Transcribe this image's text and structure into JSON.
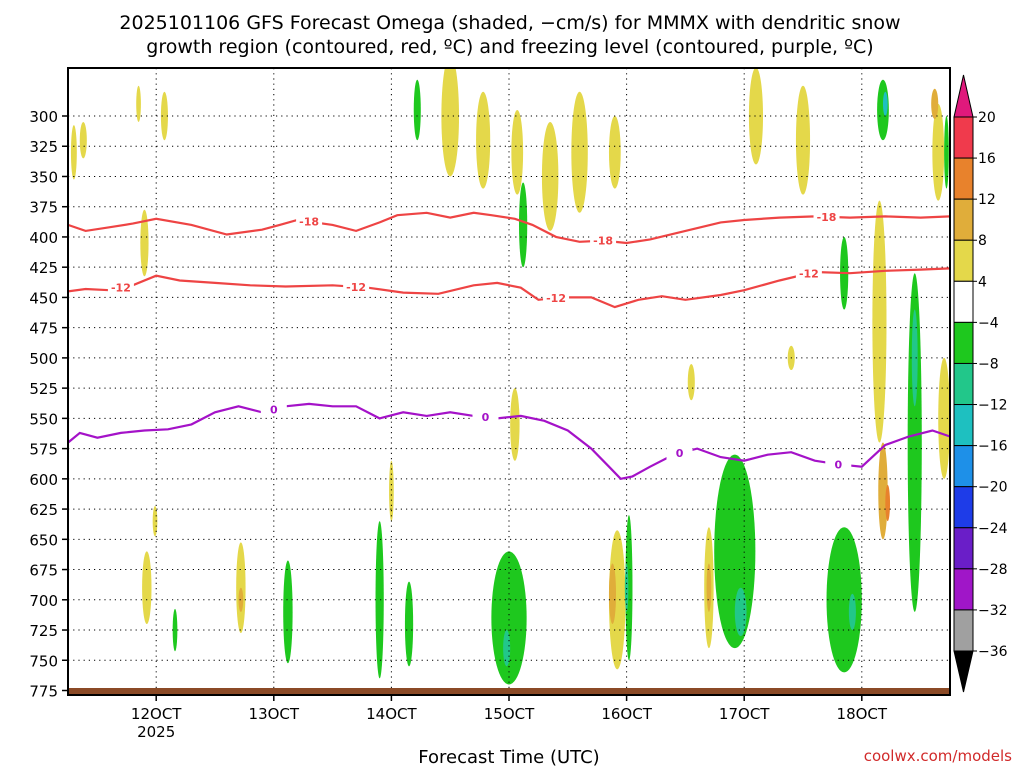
{
  "chart_data": {
    "type": "heatmap",
    "title_line1": "2025101106 GFS Forecast Omega (shaded, −cm/s) for MMMX with dendritic snow",
    "title_line2": "growth region (contoured, red, ºC) and freezing level (contoured, purple, ºC)",
    "xlabel": "Forecast Time (UTC)",
    "credit": "coolwx.com/models",
    "x_range_days": [
      11.25,
      18.75
    ],
    "x_ticks": [
      {
        "day": 12,
        "label": "12OCT",
        "sub": "2025"
      },
      {
        "day": 13,
        "label": "13OCT",
        "sub": ""
      },
      {
        "day": 14,
        "label": "14OCT",
        "sub": ""
      },
      {
        "day": 15,
        "label": "15OCT",
        "sub": ""
      },
      {
        "day": 16,
        "label": "16OCT",
        "sub": ""
      },
      {
        "day": 17,
        "label": "17OCT",
        "sub": ""
      },
      {
        "day": 18,
        "label": "18OCT",
        "sub": ""
      }
    ],
    "y_ticks": [
      "300",
      "325",
      "350",
      "375",
      "400",
      "425",
      "450",
      "475",
      "500",
      "525",
      "550",
      "575",
      "600",
      "625",
      "650",
      "675",
      "700",
      "725",
      "750",
      "775"
    ],
    "colorbar": {
      "labels": [
        "20",
        "16",
        "12",
        "8",
        "4",
        "−4",
        "−8",
        "−12",
        "−16",
        "−20",
        "−24",
        "−28",
        "−32",
        "−36"
      ],
      "colors": [
        "#f03a4c",
        "#e8822c",
        "#e0ad3a",
        "#e4d84a",
        "#ffffff",
        "#1ec81e",
        "#22c78a",
        "#1ec0c0",
        "#1e90e8",
        "#1e3ce8",
        "#6a1ec8",
        "#a016c8",
        "#a0a0a0"
      ],
      "top_arrow_color": "#e0197c",
      "bottom_arrow_color": "#000000"
    },
    "omega_patches": [
      {
        "day": 11.3,
        "p": 330,
        "w": 0.05,
        "h": 45,
        "color": "#e4d84a"
      },
      {
        "day": 11.38,
        "p": 320,
        "w": 0.06,
        "h": 30,
        "color": "#e4d84a"
      },
      {
        "day": 11.85,
        "p": 290,
        "w": 0.04,
        "h": 30,
        "color": "#e4d84a"
      },
      {
        "day": 12.07,
        "p": 300,
        "w": 0.06,
        "h": 40,
        "color": "#e4d84a"
      },
      {
        "day": 11.9,
        "p": 405,
        "w": 0.07,
        "h": 55,
        "color": "#e4d84a"
      },
      {
        "day": 11.92,
        "p": 690,
        "w": 0.08,
        "h": 60,
        "color": "#e4d84a"
      },
      {
        "day": 11.99,
        "p": 635,
        "w": 0.04,
        "h": 25,
        "color": "#e4d84a"
      },
      {
        "day": 12.16,
        "p": 725,
        "w": 0.04,
        "h": 35,
        "color": "#1ec81e"
      },
      {
        "day": 12.72,
        "p": 690,
        "w": 0.08,
        "h": 75,
        "color": "#e4d84a"
      },
      {
        "day": 12.72,
        "p": 700,
        "w": 0.04,
        "h": 20,
        "color": "#e0ad3a"
      },
      {
        "day": 13.12,
        "p": 710,
        "w": 0.08,
        "h": 85,
        "color": "#1ec81e"
      },
      {
        "day": 13.9,
        "p": 700,
        "w": 0.07,
        "h": 130,
        "color": "#1ec81e"
      },
      {
        "day": 14.15,
        "p": 720,
        "w": 0.07,
        "h": 70,
        "color": "#1ec81e"
      },
      {
        "day": 14.0,
        "p": 610,
        "w": 0.04,
        "h": 50,
        "color": "#e4d84a"
      },
      {
        "day": 14.22,
        "p": 295,
        "w": 0.06,
        "h": 50,
        "color": "#1ec81e"
      },
      {
        "day": 14.5,
        "p": 300,
        "w": 0.15,
        "h": 100,
        "color": "#e4d84a"
      },
      {
        "day": 14.78,
        "p": 320,
        "w": 0.12,
        "h": 80,
        "color": "#e4d84a"
      },
      {
        "day": 15.07,
        "p": 330,
        "w": 0.1,
        "h": 70,
        "color": "#e4d84a"
      },
      {
        "day": 15.12,
        "p": 390,
        "w": 0.07,
        "h": 70,
        "color": "#1ec81e"
      },
      {
        "day": 15.35,
        "p": 350,
        "w": 0.14,
        "h": 90,
        "color": "#e4d84a"
      },
      {
        "day": 15.6,
        "p": 330,
        "w": 0.14,
        "h": 100,
        "color": "#e4d84a"
      },
      {
        "day": 15.9,
        "p": 330,
        "w": 0.1,
        "h": 60,
        "color": "#e4d84a"
      },
      {
        "day": 15.05,
        "p": 555,
        "w": 0.08,
        "h": 60,
        "color": "#e4d84a"
      },
      {
        "day": 15.0,
        "p": 715,
        "w": 0.3,
        "h": 110,
        "color": "#1ec81e"
      },
      {
        "day": 14.98,
        "p": 740,
        "w": 0.06,
        "h": 30,
        "color": "#22c78a"
      },
      {
        "day": 15.92,
        "p": 700,
        "w": 0.14,
        "h": 115,
        "color": "#e4d84a"
      },
      {
        "day": 15.88,
        "p": 695,
        "w": 0.06,
        "h": 50,
        "color": "#e0ad3a"
      },
      {
        "day": 16.02,
        "p": 690,
        "w": 0.06,
        "h": 120,
        "color": "#1ec81e"
      },
      {
        "day": 16.0,
        "p": 690,
        "w": 0.03,
        "h": 40,
        "color": "#22c78a"
      },
      {
        "day": 16.55,
        "p": 520,
        "w": 0.06,
        "h": 30,
        "color": "#e4d84a"
      },
      {
        "day": 16.7,
        "p": 690,
        "w": 0.08,
        "h": 100,
        "color": "#e4d84a"
      },
      {
        "day": 16.7,
        "p": 690,
        "w": 0.04,
        "h": 40,
        "color": "#e0ad3a"
      },
      {
        "day": 16.92,
        "p": 660,
        "w": 0.35,
        "h": 160,
        "color": "#1ec81e"
      },
      {
        "day": 16.97,
        "p": 710,
        "w": 0.1,
        "h": 40,
        "color": "#22c78a"
      },
      {
        "day": 17.4,
        "p": 500,
        "w": 0.06,
        "h": 20,
        "color": "#e4d84a"
      },
      {
        "day": 17.1,
        "p": 300,
        "w": 0.12,
        "h": 80,
        "color": "#e4d84a"
      },
      {
        "day": 17.5,
        "p": 320,
        "w": 0.12,
        "h": 90,
        "color": "#e4d84a"
      },
      {
        "day": 17.85,
        "p": 700,
        "w": 0.3,
        "h": 120,
        "color": "#1ec81e"
      },
      {
        "day": 17.92,
        "p": 710,
        "w": 0.06,
        "h": 30,
        "color": "#22c78a"
      },
      {
        "day": 17.85,
        "p": 430,
        "w": 0.07,
        "h": 60,
        "color": "#1ec81e"
      },
      {
        "day": 18.15,
        "p": 470,
        "w": 0.12,
        "h": 200,
        "color": "#e4d84a"
      },
      {
        "day": 18.18,
        "p": 610,
        "w": 0.08,
        "h": 80,
        "color": "#e0ad3a"
      },
      {
        "day": 18.22,
        "p": 620,
        "w": 0.04,
        "h": 30,
        "color": "#e8822c"
      },
      {
        "day": 18.45,
        "p": 570,
        "w": 0.12,
        "h": 280,
        "color": "#1ec81e"
      },
      {
        "day": 18.45,
        "p": 500,
        "w": 0.05,
        "h": 80,
        "color": "#22c78a"
      },
      {
        "day": 18.18,
        "p": 295,
        "w": 0.1,
        "h": 50,
        "color": "#1ec81e"
      },
      {
        "day": 18.2,
        "p": 290,
        "w": 0.04,
        "h": 20,
        "color": "#1ec0c0"
      },
      {
        "day": 18.65,
        "p": 330,
        "w": 0.1,
        "h": 80,
        "color": "#e4d84a"
      },
      {
        "day": 18.62,
        "p": 290,
        "w": 0.06,
        "h": 25,
        "color": "#e0ad3a"
      },
      {
        "day": 18.72,
        "p": 330,
        "w": 0.04,
        "h": 60,
        "color": "#1ec81e"
      },
      {
        "day": 18.7,
        "p": 550,
        "w": 0.1,
        "h": 100,
        "color": "#e4d84a"
      }
    ],
    "contours": [
      {
        "name": "-18",
        "color": "#ee4444",
        "x": [
          11.25,
          11.4,
          11.6,
          11.8,
          12.0,
          12.3,
          12.6,
          12.9,
          13.05,
          13.2,
          13.5,
          13.7,
          13.9,
          14.05,
          14.3,
          14.5,
          14.7,
          14.85,
          15.05,
          15.2,
          15.4,
          15.6,
          15.8,
          16.0,
          16.2,
          16.5,
          16.8,
          17.0,
          17.3,
          17.6,
          17.9,
          18.2,
          18.5,
          18.75
        ],
        "y": [
          390,
          395,
          392,
          389,
          385,
          390,
          398,
          394,
          390,
          386,
          390,
          395,
          388,
          382,
          380,
          384,
          380,
          382,
          385,
          390,
          400,
          404,
          403,
          405,
          402,
          395,
          388,
          386,
          384,
          383,
          384,
          383,
          384,
          383
        ],
        "labels": [
          {
            "x": 13.3,
            "text": "-18"
          },
          {
            "x": 15.8,
            "text": "-18"
          },
          {
            "x": 17.7,
            "text": "-18"
          }
        ]
      },
      {
        "name": "-12",
        "color": "#ee4444",
        "x": [
          11.25,
          11.4,
          11.6,
          11.8,
          12.0,
          12.2,
          12.5,
          12.8,
          13.1,
          13.5,
          13.8,
          14.1,
          14.4,
          14.7,
          14.9,
          15.1,
          15.25,
          15.45,
          15.7,
          15.9,
          16.1,
          16.3,
          16.5,
          16.8,
          17.0,
          17.3,
          17.6,
          17.9,
          18.2,
          18.5,
          18.75
        ],
        "y": [
          445,
          443,
          444,
          440,
          432,
          436,
          438,
          440,
          441,
          440,
          442,
          446,
          447,
          440,
          438,
          442,
          452,
          450,
          450,
          458,
          452,
          449,
          452,
          448,
          444,
          436,
          429,
          430,
          428,
          427,
          426
        ],
        "labels": [
          {
            "x": 11.7,
            "text": "-12"
          },
          {
            "x": 13.7,
            "text": "-12"
          },
          {
            "x": 15.4,
            "text": "-12"
          },
          {
            "x": 17.55,
            "text": "-12"
          }
        ]
      },
      {
        "name": "0",
        "color": "#a412c8",
        "x": [
          11.25,
          11.35,
          11.5,
          11.7,
          11.9,
          12.1,
          12.3,
          12.5,
          12.7,
          12.9,
          13.1,
          13.3,
          13.5,
          13.7,
          13.9,
          14.1,
          14.3,
          14.5,
          14.7,
          14.9,
          15.1,
          15.3,
          15.5,
          15.7,
          15.85,
          15.95,
          16.05,
          16.2,
          16.4,
          16.6,
          16.8,
          17.0,
          17.2,
          17.4,
          17.6,
          17.8,
          18.0,
          18.2,
          18.4,
          18.6,
          18.75
        ],
        "y": [
          570,
          562,
          566,
          562,
          560,
          559,
          555,
          545,
          540,
          545,
          540,
          538,
          540,
          540,
          550,
          545,
          548,
          545,
          548,
          550,
          548,
          552,
          560,
          575,
          590,
          600,
          598,
          590,
          580,
          575,
          582,
          585,
          580,
          578,
          585,
          588,
          590,
          572,
          565,
          560,
          565
        ],
        "labels": [
          {
            "x": 13.0,
            "text": "0"
          },
          {
            "x": 14.8,
            "text": "0"
          },
          {
            "x": 16.45,
            "text": "0"
          },
          {
            "x": 17.8,
            "text": "0"
          }
        ]
      }
    ]
  }
}
